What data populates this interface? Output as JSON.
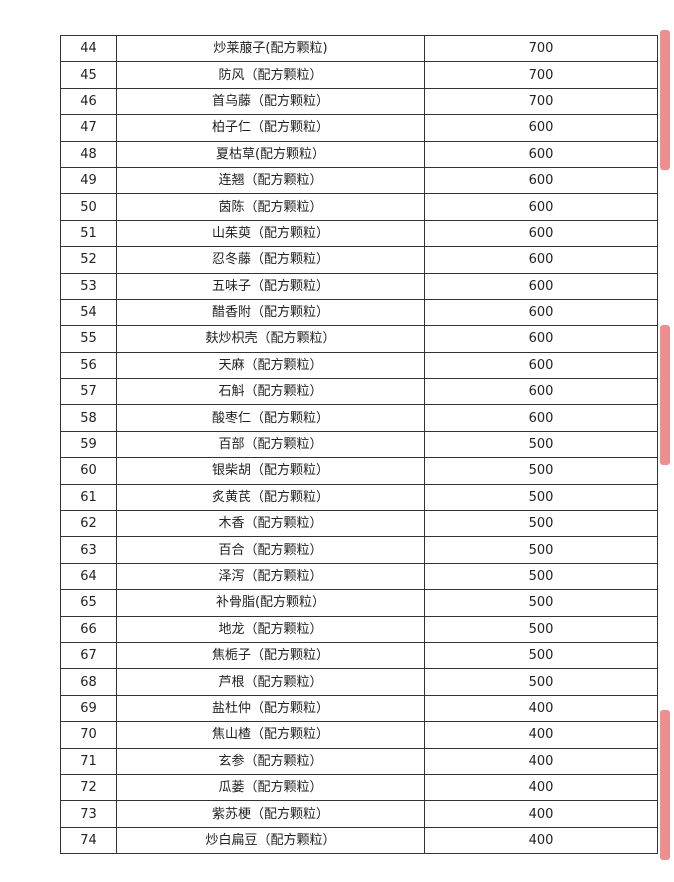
{
  "rows": [
    {
      "no": "44",
      "name": "炒莱菔子(配方颗粒)",
      "qty": "700"
    },
    {
      "no": "45",
      "name": "防风（配方颗粒）",
      "qty": "700"
    },
    {
      "no": "46",
      "name": "首乌藤（配方颗粒）",
      "qty": "700"
    },
    {
      "no": "47",
      "name": "柏子仁（配方颗粒）",
      "qty": "600"
    },
    {
      "no": "48",
      "name": "夏枯草(配方颗粒）",
      "qty": "600"
    },
    {
      "no": "49",
      "name": "连翘（配方颗粒）",
      "qty": "600"
    },
    {
      "no": "50",
      "name": "茵陈（配方颗粒）",
      "qty": "600"
    },
    {
      "no": "51",
      "name": "山茱萸（配方颗粒）",
      "qty": "600"
    },
    {
      "no": "52",
      "name": "忍冬藤（配方颗粒）",
      "qty": "600"
    },
    {
      "no": "53",
      "name": "五味子（配方颗粒）",
      "qty": "600"
    },
    {
      "no": "54",
      "name": "醋香附（配方颗粒）",
      "qty": "600"
    },
    {
      "no": "55",
      "name": "麸炒枳壳（配方颗粒）",
      "qty": "600"
    },
    {
      "no": "56",
      "name": "天麻（配方颗粒）",
      "qty": "600"
    },
    {
      "no": "57",
      "name": "石斛（配方颗粒）",
      "qty": "600"
    },
    {
      "no": "58",
      "name": "酸枣仁（配方颗粒）",
      "qty": "600"
    },
    {
      "no": "59",
      "name": "百部（配方颗粒）",
      "qty": "500"
    },
    {
      "no": "60",
      "name": "银柴胡（配方颗粒）",
      "qty": "500"
    },
    {
      "no": "61",
      "name": "炙黄芪（配方颗粒）",
      "qty": "500"
    },
    {
      "no": "62",
      "name": "木香（配方颗粒）",
      "qty": "500"
    },
    {
      "no": "63",
      "name": "百合（配方颗粒）",
      "qty": "500"
    },
    {
      "no": "64",
      "name": "泽泻（配方颗粒）",
      "qty": "500"
    },
    {
      "no": "65",
      "name": "补骨脂(配方颗粒）",
      "qty": "500"
    },
    {
      "no": "66",
      "name": "地龙（配方颗粒）",
      "qty": "500"
    },
    {
      "no": "67",
      "name": "焦栀子（配方颗粒）",
      "qty": "500"
    },
    {
      "no": "68",
      "name": "芦根（配方颗粒）",
      "qty": "500"
    },
    {
      "no": "69",
      "name": "盐杜仲（配方颗粒）",
      "qty": "400"
    },
    {
      "no": "70",
      "name": "焦山楂（配方颗粒）",
      "qty": "400"
    },
    {
      "no": "71",
      "name": "玄参（配方颗粒）",
      "qty": "400"
    },
    {
      "no": "72",
      "name": "瓜蒌（配方颗粒）",
      "qty": "400"
    },
    {
      "no": "73",
      "name": "紫苏梗（配方颗粒）",
      "qty": "400"
    },
    {
      "no": "74",
      "name": "炒白扁豆（配方颗粒）",
      "qty": "400"
    }
  ],
  "stamp_color": "#d33333"
}
